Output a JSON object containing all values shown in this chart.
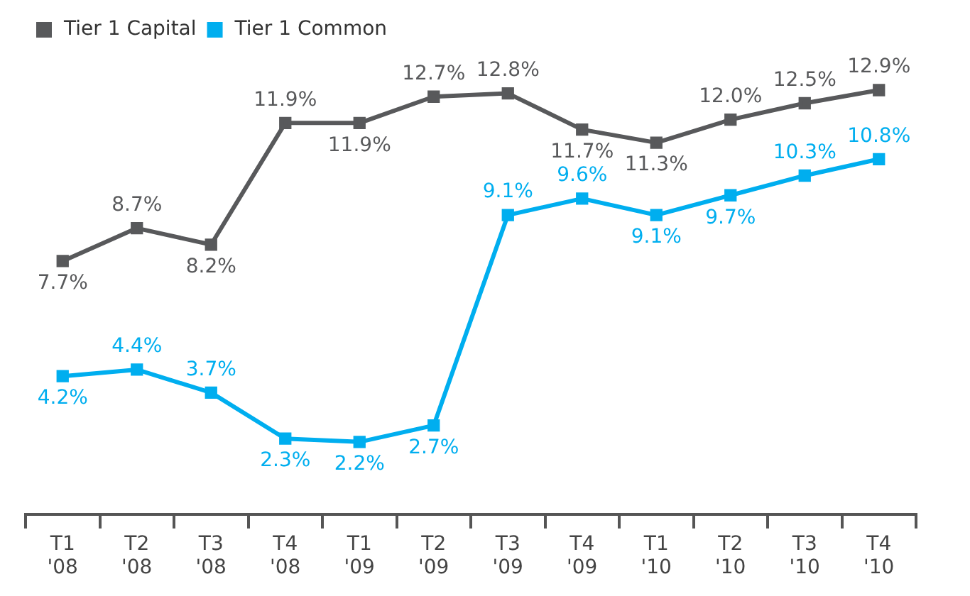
{
  "chart_data": {
    "type": "line",
    "categories": [
      "T1 '08",
      "T2 '08",
      "T3 '08",
      "T4 '08",
      "T1 '09",
      "T2 '09",
      "T3 '09",
      "T4 '09",
      "T1 '10",
      "T2 '10",
      "T3 '10",
      "T4 '10"
    ],
    "series": [
      {
        "name": "Tier 1 Capital",
        "color": "#58595b",
        "values": [
          7.7,
          8.7,
          8.2,
          11.9,
          11.9,
          12.7,
          12.8,
          11.7,
          11.3,
          12.0,
          12.5,
          12.9
        ],
        "value_labels": [
          "7.7%",
          "8.7%",
          "8.2%",
          "11.9%",
          "11.9%",
          "12.7%",
          "12.8%",
          "11.7%",
          "11.3%",
          "12.0%",
          "12.5%",
          "12.9%"
        ]
      },
      {
        "name": "Tier 1 Common",
        "color": "#00aeef",
        "values": [
          4.2,
          4.4,
          3.7,
          2.3,
          2.2,
          2.7,
          9.1,
          9.6,
          9.1,
          9.7,
          10.3,
          10.8
        ],
        "value_labels": [
          "4.2%",
          "4.4%",
          "3.7%",
          "2.3%",
          "2.2%",
          "2.7%",
          "9.1%",
          "9.6%",
          "9.1%",
          "9.7%",
          "10.3%",
          "10.8%"
        ]
      }
    ],
    "legend": "top left",
    "marker": "square",
    "line_style": "solid",
    "grid": false,
    "tick_labels": "x"
  }
}
